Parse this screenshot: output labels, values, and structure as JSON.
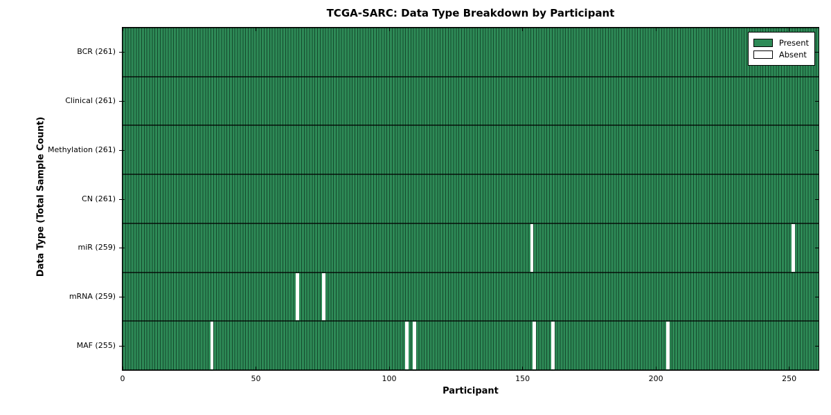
{
  "chart_data": {
    "type": "heatmap",
    "title": "TCGA-SARC: Data Type Breakdown by Participant",
    "xlabel": "Participant",
    "ylabel": "Data Type (Total Sample Count)",
    "x_range": [
      0,
      261
    ],
    "x_ticks": [
      "0",
      "50",
      "100",
      "150",
      "200",
      "250"
    ],
    "x_tick_values": [
      0,
      50,
      100,
      150,
      200,
      250
    ],
    "n_participants": 261,
    "grid": false,
    "colors": {
      "present": "#2e8b57",
      "bar_edge": "#14482c",
      "absent": "#ffffff",
      "axis": "#000000"
    },
    "legend": {
      "position": "upper right",
      "entries": [
        {
          "label": "Present",
          "color": "#2e8b57"
        },
        {
          "label": "Absent",
          "color": "#ffffff"
        }
      ]
    },
    "rows": [
      {
        "label": "BCR (261)",
        "data_type": "BCR",
        "present_count": 261,
        "absent_participants": []
      },
      {
        "label": "Clinical (261)",
        "data_type": "Clinical",
        "present_count": 261,
        "absent_participants": []
      },
      {
        "label": "Methylation (261)",
        "data_type": "Methylation",
        "present_count": 261,
        "absent_participants": []
      },
      {
        "label": "CN (261)",
        "data_type": "CN",
        "present_count": 261,
        "absent_participants": []
      },
      {
        "label": "miR (259)",
        "data_type": "miR",
        "present_count": 259,
        "absent_participants": [
          153,
          251
        ]
      },
      {
        "label": "mRNA (259)",
        "data_type": "mRNA",
        "present_count": 259,
        "absent_participants": [
          65,
          75
        ]
      },
      {
        "label": "MAF (255)",
        "data_type": "MAF",
        "present_count": 255,
        "absent_participants": [
          33,
          106,
          109,
          154,
          161,
          204
        ]
      }
    ]
  }
}
